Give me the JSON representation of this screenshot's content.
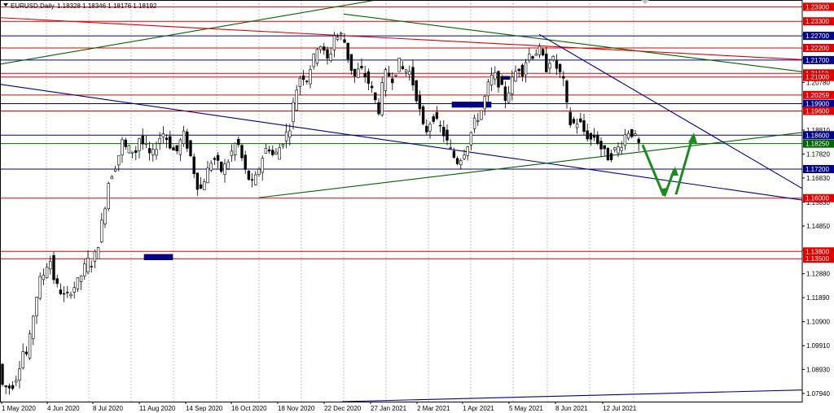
{
  "header": {
    "symbol_text": "EURUSD,Daily",
    "ohlc_text": "1.18328 1.18346 1.18176 1.18192"
  },
  "chart_data": {
    "type": "candlestick",
    "title": "EURUSD,Daily",
    "y_range": [
      1.076,
      1.2418
    ],
    "y_ticks": [
      1.0794,
      1.0893,
      1.0991,
      1.109,
      1.1189,
      1.1288,
      1.1386,
      1.1485,
      1.1583,
      1.1683,
      1.1782,
      1.1881,
      1.1977,
      1.2078,
      1.2177,
      1.2275
    ],
    "x_labels": [
      "1 May 2020",
      "4 Jun 2020",
      "8 Jul 2020",
      "11 Aug 2020",
      "14 Sep 2020",
      "16 Oct 2020",
      "18 Nov 2020",
      "22 Dec 2020",
      "27 Jan 2021",
      "2 Mar 2021",
      "1 Apr 2021",
      "5 May 2021",
      "8 Jun 2021",
      "12 Jul 2021"
    ],
    "horizontal_levels": [
      {
        "price": 1.239,
        "label": "1.23900",
        "color": "#e00000"
      },
      {
        "price": 1.233,
        "label": "1.23300",
        "color": "#e00000"
      },
      {
        "price": 1.227,
        "label": "1.22700",
        "color": "#00008b"
      },
      {
        "price": 1.222,
        "label": "1.22200",
        "color": "#e00000"
      },
      {
        "price": 1.217,
        "label": "1.21700",
        "color": "#00008b"
      },
      {
        "price": 1.2115,
        "label": "1.21150",
        "color": "#e00000"
      },
      {
        "price": 1.21,
        "label": "1.21000",
        "color": "#e00000"
      },
      {
        "price": 1.20259,
        "label": "1.20259",
        "color": "#e00000"
      },
      {
        "price": 1.199,
        "label": "1.19900",
        "color": "#00008b"
      },
      {
        "price": 1.196,
        "label": "1.19600",
        "color": "#e00000"
      },
      {
        "price": 1.186,
        "label": "1.18600",
        "color": "#00008b"
      },
      {
        "price": 1.1825,
        "label": "1.18250",
        "color": "#006400"
      },
      {
        "price": 1.172,
        "label": "1.17200",
        "color": "#00008b"
      },
      {
        "price": 1.16,
        "label": "1.16000",
        "color": "#e00000"
      },
      {
        "price": 1.138,
        "label": "1.13800",
        "color": "#e00000"
      },
      {
        "price": 1.135,
        "label": "1.13500",
        "color": "#e00000"
      }
    ],
    "price_path": [
      [
        0,
        1.1
      ],
      [
        6,
        1.083
      ],
      [
        12,
        1.082
      ],
      [
        18,
        1.082
      ],
      [
        25,
        1.087
      ],
      [
        32,
        1.097
      ],
      [
        38,
        1.095
      ],
      [
        45,
        1.112
      ],
      [
        52,
        1.125
      ],
      [
        58,
        1.129
      ],
      [
        65,
        1.136
      ],
      [
        72,
        1.124
      ],
      [
        78,
        1.122
      ],
      [
        85,
        1.118
      ],
      [
        92,
        1.123
      ],
      [
        98,
        1.124
      ],
      [
        105,
        1.129
      ],
      [
        112,
        1.134
      ],
      [
        118,
        1.133
      ],
      [
        125,
        1.142
      ],
      [
        132,
        1.155
      ],
      [
        138,
        1.168
      ],
      [
        145,
        1.173
      ],
      [
        150,
        1.178
      ],
      [
        155,
        1.184
      ],
      [
        160,
        1.179
      ],
      [
        165,
        1.181
      ],
      [
        170,
        1.178
      ],
      [
        175,
        1.185
      ],
      [
        180,
        1.182
      ],
      [
        185,
        1.18
      ],
      [
        190,
        1.176
      ],
      [
        195,
        1.181
      ],
      [
        200,
        1.185
      ],
      [
        205,
        1.187
      ],
      [
        210,
        1.184
      ],
      [
        215,
        1.181
      ],
      [
        220,
        1.178
      ],
      [
        225,
        1.183
      ],
      [
        230,
        1.186
      ],
      [
        235,
        1.181
      ],
      [
        240,
        1.175
      ],
      [
        245,
        1.167
      ],
      [
        250,
        1.163
      ],
      [
        255,
        1.168
      ],
      [
        260,
        1.172
      ],
      [
        265,
        1.177
      ],
      [
        270,
        1.175
      ],
      [
        275,
        1.171
      ],
      [
        280,
        1.173
      ],
      [
        285,
        1.176
      ],
      [
        290,
        1.18
      ],
      [
        295,
        1.184
      ],
      [
        300,
        1.178
      ],
      [
        305,
        1.171
      ],
      [
        310,
        1.168
      ],
      [
        315,
        1.165
      ],
      [
        320,
        1.17
      ],
      [
        325,
        1.176
      ],
      [
        330,
        1.18
      ],
      [
        335,
        1.181
      ],
      [
        340,
        1.177
      ],
      [
        345,
        1.179
      ],
      [
        350,
        1.183
      ],
      [
        355,
        1.186
      ],
      [
        360,
        1.19
      ],
      [
        365,
        1.2
      ],
      [
        370,
        1.208
      ],
      [
        375,
        1.212
      ],
      [
        380,
        1.208
      ],
      [
        385,
        1.214
      ],
      [
        390,
        1.218
      ],
      [
        395,
        1.225
      ],
      [
        400,
        1.222
      ],
      [
        405,
        1.216
      ],
      [
        410,
        1.22
      ],
      [
        415,
        1.228
      ],
      [
        420,
        1.226
      ],
      [
        425,
        1.228
      ],
      [
        430,
        1.22
      ],
      [
        435,
        1.214
      ],
      [
        440,
        1.21
      ],
      [
        445,
        1.213
      ],
      [
        450,
        1.212
      ],
      [
        455,
        1.209
      ],
      [
        460,
        1.205
      ],
      [
        465,
        1.2
      ],
      [
        470,
        1.196
      ],
      [
        475,
        1.21
      ],
      [
        480,
        1.212
      ],
      [
        485,
        1.209
      ],
      [
        490,
        1.213
      ],
      [
        495,
        1.216
      ],
      [
        500,
        1.212
      ],
      [
        505,
        1.214
      ],
      [
        510,
        1.209
      ],
      [
        515,
        1.203
      ],
      [
        520,
        1.195
      ],
      [
        525,
        1.187
      ],
      [
        530,
        1.189
      ],
      [
        535,
        1.195
      ],
      [
        540,
        1.191
      ],
      [
        545,
        1.189
      ],
      [
        550,
        1.186
      ],
      [
        555,
        1.181
      ],
      [
        560,
        1.178
      ],
      [
        565,
        1.175
      ],
      [
        570,
        1.177
      ],
      [
        575,
        1.18
      ],
      [
        580,
        1.184
      ],
      [
        585,
        1.19
      ],
      [
        590,
        1.193
      ],
      [
        595,
        1.196
      ],
      [
        600,
        1.202
      ],
      [
        605,
        1.208
      ],
      [
        610,
        1.211
      ],
      [
        615,
        1.209
      ],
      [
        620,
        1.205
      ],
      [
        625,
        1.201
      ],
      [
        630,
        1.206
      ],
      [
        635,
        1.21
      ],
      [
        640,
        1.215
      ],
      [
        645,
        1.212
      ],
      [
        650,
        1.217
      ],
      [
        655,
        1.22
      ],
      [
        660,
        1.219
      ],
      [
        665,
        1.222
      ],
      [
        670,
        1.218
      ],
      [
        675,
        1.214
      ],
      [
        680,
        1.218
      ],
      [
        685,
        1.216
      ],
      [
        690,
        1.212
      ],
      [
        695,
        1.21
      ],
      [
        700,
        1.198
      ],
      [
        705,
        1.19
      ],
      [
        710,
        1.191
      ],
      [
        715,
        1.192
      ],
      [
        720,
        1.188
      ],
      [
        725,
        1.186
      ],
      [
        730,
        1.184
      ],
      [
        735,
        1.186
      ],
      [
        740,
        1.182
      ],
      [
        745,
        1.179
      ],
      [
        750,
        1.177
      ],
      [
        755,
        1.178
      ],
      [
        760,
        1.18
      ],
      [
        765,
        1.181
      ],
      [
        770,
        1.185
      ],
      [
        775,
        1.188
      ],
      [
        780,
        1.187
      ],
      [
        785,
        1.184
      ],
      [
        788,
        1.1819
      ]
    ],
    "trendlines": [
      {
        "color": "#006400",
        "x1": 0,
        "p1": 1.2153,
        "x2": 622,
        "p2": 1.251
      },
      {
        "color": "#006400",
        "x1": 422,
        "p1": 1.236,
        "x2": 985,
        "p2": 1.2122
      },
      {
        "color": "#e00000",
        "x1": 0,
        "p1": 1.2345,
        "x2": 985,
        "p2": 1.2172
      },
      {
        "color": "#00008b",
        "x1": 0,
        "p1": 1.207,
        "x2": 985,
        "p2": 1.1592
      },
      {
        "color": "#006400",
        "x1": 318,
        "p1": 1.1602,
        "x2": 985,
        "p2": 1.1871
      },
      {
        "color": "#00008b",
        "x1": 662,
        "p1": 1.2276,
        "x2": 985,
        "p2": 1.164
      },
      {
        "color": "#00008b",
        "x1": 420,
        "p1": 1.076,
        "x2": 985,
        "p2": 1.0808
      }
    ],
    "rectangles": [
      {
        "x1": 555,
        "x2": 603,
        "p_top": 1.1997,
        "p_bottom": 1.1975,
        "color": "#00008b"
      },
      {
        "x1": 617,
        "x2": 626,
        "p_top": 1.2103,
        "p_bottom": 1.209,
        "color": "#00008b"
      },
      {
        "x1": 177,
        "x2": 212,
        "p_top": 1.1368,
        "p_bottom": 1.1345,
        "color": "#00008b"
      }
    ],
    "projection": {
      "color": "#1a8c1a",
      "points": [
        [
          789,
          1.182
        ],
        [
          815,
          1.161
        ],
        [
          828,
          1.172
        ],
        [
          830,
          1.1615
        ],
        [
          851,
          1.186
        ]
      ]
    }
  }
}
